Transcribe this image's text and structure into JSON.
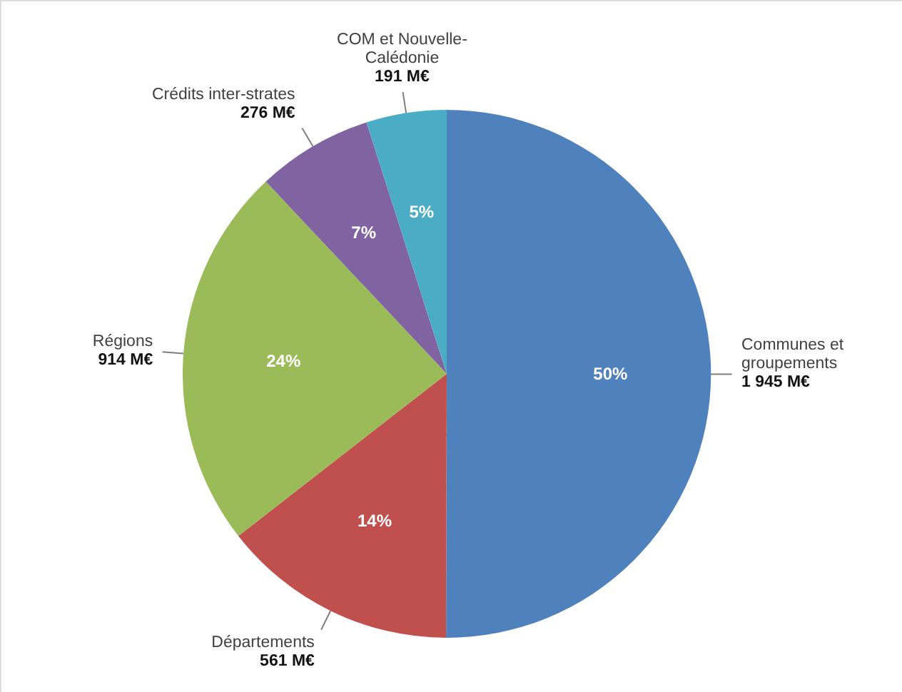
{
  "chart_data": {
    "type": "pie",
    "categories": [
      "Communes et groupements",
      "Départements",
      "Régions",
      "Crédits inter-strates",
      "COM et Nouvelle-Calédonie"
    ],
    "values": [
      1945,
      561,
      914,
      276,
      191
    ],
    "value_labels": [
      "1 945 M€",
      "561 M€",
      "914 M€",
      "276 M€",
      "191 M€"
    ],
    "colors": [
      "#4f81bd",
      "#c0504d",
      "#9bbb59",
      "#8064a2",
      "#4bacc6"
    ],
    "annotations": [
      {
        "text": "50%",
        "x": "Communes et groupements"
      },
      {
        "text": "14%",
        "x": "Départements"
      },
      {
        "text": "24%",
        "x": "Régions"
      },
      {
        "text": "7%",
        "x": "Crédits inter-strates"
      },
      {
        "text": "5%",
        "x": "COM et Nouvelle-Calédonie"
      }
    ]
  }
}
